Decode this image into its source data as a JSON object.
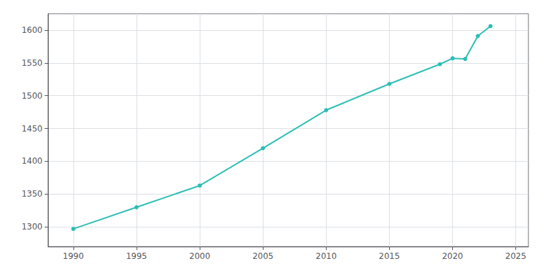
{
  "chart_data": {
    "type": "line",
    "x": [
      1990,
      1995,
      2000,
      2005,
      2010,
      2015,
      2019,
      2020,
      2021,
      2022,
      2023
    ],
    "values": [
      1297,
      1330,
      1363,
      1420,
      1478,
      1518,
      1548,
      1557,
      1556,
      1591,
      1606
    ],
    "color": "#2abdb5",
    "marker": "circle",
    "xlim": [
      1988,
      2026
    ],
    "ylim": [
      1270,
      1625
    ],
    "xticks": [
      1990,
      1995,
      2000,
      2005,
      2010,
      2015,
      2020,
      2025
    ],
    "yticks": [
      1300,
      1350,
      1400,
      1450,
      1500,
      1550,
      1600
    ],
    "grid": true
  }
}
